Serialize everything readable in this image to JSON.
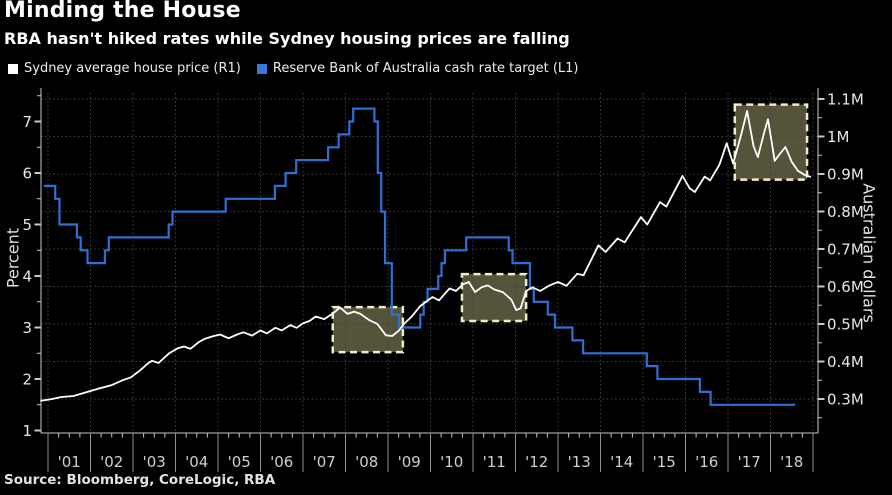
{
  "header": {
    "title": "Minding the House",
    "subtitle": "RBA hasn't hiked rates while Sydney housing prices are falling"
  },
  "legend": {
    "items": [
      {
        "label": "Sydney average house price (R1)",
        "color": "#ffffff"
      },
      {
        "label": "Reserve Bank of Australia cash rate target (L1)",
        "color": "#3a78dc"
      }
    ]
  },
  "source": {
    "text": "Source: Bloomberg, CoreLogic, RBA"
  },
  "colors": {
    "background": "#000000",
    "axis_line": "#c8c8c8",
    "grid_line": "#434343",
    "year_separator": "#8f8f8f",
    "tick_label": "#e6e6e6",
    "x_label": "#cfcfcf",
    "house_price_line": "#ffffff",
    "cash_rate_line": "#2e6fd3",
    "box_fill": "#55533a",
    "box_border": "#f0ecc4"
  },
  "chart_data": {
    "type": "line",
    "title": "Minding the House",
    "subtitle": "RBA hasn't hiked rates while Sydney housing prices are falling",
    "left_axis": {
      "label": "Percent",
      "tick_values": [
        7,
        6,
        5,
        4,
        3,
        2,
        1
      ],
      "minor_tick_values": [
        7.5,
        6.5,
        5.5,
        4.5,
        3.5,
        2.5,
        1.5
      ],
      "range": [
        0.85,
        7.6
      ]
    },
    "right_axis": {
      "label": "Australian dollars",
      "tick_labels": [
        "1.1M",
        "1M",
        "0.9M",
        "0.8M",
        "0.7M",
        "0.6M",
        "0.5M",
        "0.4M",
        "0.3M"
      ],
      "tick_values": [
        1.1,
        1.0,
        0.9,
        0.8,
        0.7,
        0.6,
        0.5,
        0.4,
        0.3
      ],
      "minor_tick_values": [
        1.05,
        0.95,
        0.85,
        0.75,
        0.65,
        0.55,
        0.45,
        0.35,
        0.25
      ],
      "range_m": [
        0.21,
        1.19
      ]
    },
    "x_axis": {
      "tick_labels": [
        "'01",
        "'02",
        "'03",
        "'04",
        "'05",
        "'06",
        "'07",
        "'08",
        "'09",
        "'10",
        "'11",
        "'12",
        "'13",
        "'14",
        "'15",
        "'16",
        "'17",
        "'18"
      ],
      "years": [
        2001,
        2002,
        2003,
        2004,
        2005,
        2006,
        2007,
        2008,
        2009,
        2010,
        2011,
        2012,
        2013,
        2014,
        2015,
        2016,
        2017,
        2018
      ],
      "range": [
        2000.81,
        2019.0
      ]
    },
    "grid": {
      "horizontal_values_m": [
        0.3,
        0.4,
        0.5,
        0.6,
        0.7,
        0.8,
        0.9,
        1.0,
        1.1
      ],
      "vertical_years": [
        2001,
        2002,
        2003,
        2004,
        2005,
        2006,
        2007,
        2008,
        2009,
        2010,
        2011,
        2012,
        2013,
        2014,
        2015,
        2016,
        2017,
        2018,
        2019
      ]
    },
    "highlight_boxes": [
      {
        "x": [
          2007.7,
          2009.35
        ],
        "y_m": [
          0.425,
          0.545
        ]
      },
      {
        "x": [
          2010.74,
          2012.25
        ],
        "y_m": [
          0.508,
          0.633
        ]
      },
      {
        "x": [
          2017.16,
          2018.86
        ],
        "y_m": [
          0.885,
          1.085
        ]
      }
    ],
    "series": [
      {
        "name": "Sydney average house price",
        "axis": "R1",
        "unit": "million AUD",
        "style": "line",
        "points": [
          [
            2000.82,
            0.295
          ],
          [
            2001.1,
            0.3
          ],
          [
            2001.3,
            0.305
          ],
          [
            2001.6,
            0.308
          ],
          [
            2001.9,
            0.318
          ],
          [
            2002.2,
            0.328
          ],
          [
            2002.5,
            0.337
          ],
          [
            2002.75,
            0.35
          ],
          [
            2002.95,
            0.358
          ],
          [
            2003.15,
            0.375
          ],
          [
            2003.35,
            0.395
          ],
          [
            2003.45,
            0.402
          ],
          [
            2003.6,
            0.396
          ],
          [
            2003.85,
            0.422
          ],
          [
            2004.05,
            0.435
          ],
          [
            2004.2,
            0.44
          ],
          [
            2004.35,
            0.434
          ],
          [
            2004.55,
            0.452
          ],
          [
            2004.7,
            0.461
          ],
          [
            2004.9,
            0.468
          ],
          [
            2005.05,
            0.472
          ],
          [
            2005.25,
            0.462
          ],
          [
            2005.45,
            0.472
          ],
          [
            2005.6,
            0.478
          ],
          [
            2005.8,
            0.469
          ],
          [
            2006.0,
            0.483
          ],
          [
            2006.15,
            0.475
          ],
          [
            2006.35,
            0.49
          ],
          [
            2006.5,
            0.483
          ],
          [
            2006.7,
            0.497
          ],
          [
            2006.85,
            0.49
          ],
          [
            2007.0,
            0.502
          ],
          [
            2007.15,
            0.508
          ],
          [
            2007.3,
            0.52
          ],
          [
            2007.5,
            0.513
          ],
          [
            2007.7,
            0.528
          ],
          [
            2007.87,
            0.544
          ],
          [
            2008.05,
            0.527
          ],
          [
            2008.2,
            0.533
          ],
          [
            2008.35,
            0.527
          ],
          [
            2008.55,
            0.511
          ],
          [
            2008.75,
            0.5
          ],
          [
            2008.95,
            0.47
          ],
          [
            2009.1,
            0.468
          ],
          [
            2009.25,
            0.482
          ],
          [
            2009.4,
            0.503
          ],
          [
            2009.55,
            0.519
          ],
          [
            2009.75,
            0.547
          ],
          [
            2009.9,
            0.56
          ],
          [
            2010.05,
            0.572
          ],
          [
            2010.2,
            0.563
          ],
          [
            2010.45,
            0.595
          ],
          [
            2010.6,
            0.588
          ],
          [
            2010.75,
            0.605
          ],
          [
            2010.9,
            0.612
          ],
          [
            2011.05,
            0.585
          ],
          [
            2011.2,
            0.598
          ],
          [
            2011.35,
            0.603
          ],
          [
            2011.5,
            0.592
          ],
          [
            2011.7,
            0.585
          ],
          [
            2011.9,
            0.565
          ],
          [
            2012.02,
            0.537
          ],
          [
            2012.12,
            0.542
          ],
          [
            2012.25,
            0.588
          ],
          [
            2012.4,
            0.598
          ],
          [
            2012.58,
            0.588
          ],
          [
            2012.8,
            0.603
          ],
          [
            2013.0,
            0.612
          ],
          [
            2013.2,
            0.602
          ],
          [
            2013.45,
            0.634
          ],
          [
            2013.6,
            0.63
          ],
          [
            2013.95,
            0.71
          ],
          [
            2014.12,
            0.692
          ],
          [
            2014.4,
            0.728
          ],
          [
            2014.57,
            0.718
          ],
          [
            2014.95,
            0.785
          ],
          [
            2015.1,
            0.765
          ],
          [
            2015.4,
            0.825
          ],
          [
            2015.55,
            0.813
          ],
          [
            2015.93,
            0.895
          ],
          [
            2016.1,
            0.862
          ],
          [
            2016.22,
            0.852
          ],
          [
            2016.45,
            0.893
          ],
          [
            2016.58,
            0.883
          ],
          [
            2016.8,
            0.925
          ],
          [
            2016.97,
            0.982
          ],
          [
            2017.12,
            0.928
          ],
          [
            2017.3,
            1.0
          ],
          [
            2017.45,
            1.068
          ],
          [
            2017.6,
            0.975
          ],
          [
            2017.7,
            0.945
          ],
          [
            2017.85,
            1.01
          ],
          [
            2017.94,
            1.046
          ],
          [
            2018.1,
            0.935
          ],
          [
            2018.18,
            0.948
          ],
          [
            2018.35,
            0.972
          ],
          [
            2018.5,
            0.932
          ],
          [
            2018.65,
            0.908
          ],
          [
            2018.8,
            0.898
          ],
          [
            2018.95,
            0.892
          ]
        ]
      },
      {
        "name": "Reserve Bank of Australia cash rate target",
        "axis": "L1",
        "unit": "percent",
        "style": "step",
        "end_year": 2018.58,
        "points": [
          [
            2000.9,
            5.75
          ],
          [
            2001.17,
            5.5
          ],
          [
            2001.27,
            5.0
          ],
          [
            2001.68,
            4.75
          ],
          [
            2001.77,
            4.5
          ],
          [
            2001.93,
            4.25
          ],
          [
            2002.34,
            4.5
          ],
          [
            2002.43,
            4.75
          ],
          [
            2003.84,
            5.0
          ],
          [
            2003.93,
            5.25
          ],
          [
            2005.18,
            5.5
          ],
          [
            2006.34,
            5.75
          ],
          [
            2006.59,
            6.0
          ],
          [
            2006.84,
            6.25
          ],
          [
            2007.59,
            6.5
          ],
          [
            2007.84,
            6.75
          ],
          [
            2008.09,
            7.0
          ],
          [
            2008.18,
            7.25
          ],
          [
            2008.68,
            7.0
          ],
          [
            2008.76,
            6.0
          ],
          [
            2008.84,
            5.25
          ],
          [
            2008.93,
            4.25
          ],
          [
            2009.09,
            3.25
          ],
          [
            2009.26,
            3.0
          ],
          [
            2009.76,
            3.25
          ],
          [
            2009.84,
            3.5
          ],
          [
            2009.93,
            3.75
          ],
          [
            2010.18,
            4.0
          ],
          [
            2010.26,
            4.25
          ],
          [
            2010.34,
            4.5
          ],
          [
            2010.84,
            4.75
          ],
          [
            2011.84,
            4.5
          ],
          [
            2011.93,
            4.25
          ],
          [
            2012.34,
            3.75
          ],
          [
            2012.43,
            3.5
          ],
          [
            2012.76,
            3.25
          ],
          [
            2012.93,
            3.0
          ],
          [
            2013.34,
            2.75
          ],
          [
            2013.59,
            2.5
          ],
          [
            2015.09,
            2.25
          ],
          [
            2015.34,
            2.0
          ],
          [
            2016.34,
            1.75
          ],
          [
            2016.59,
            1.5
          ]
        ]
      }
    ]
  }
}
